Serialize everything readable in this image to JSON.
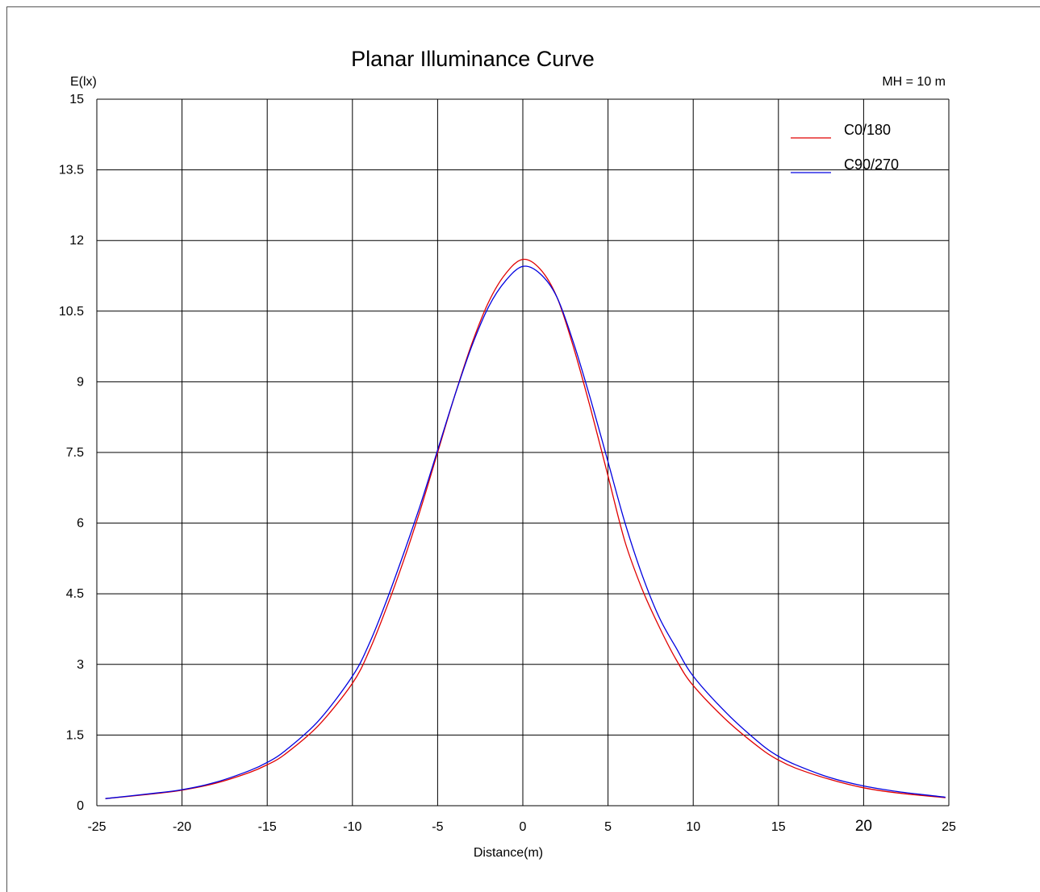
{
  "chart_data": {
    "type": "line",
    "title": "Planar Illuminance Curve",
    "subtitle": "MH = 10 m",
    "xlabel": "Distance(m)",
    "ylabel": "E(lx)",
    "xlim": [
      -25,
      25
    ],
    "ylim": [
      0,
      15
    ],
    "x_ticks": [
      "-25",
      "-20",
      "-15",
      "-10",
      "-5",
      "0",
      "5",
      "10",
      "15",
      "20",
      "25"
    ],
    "y_ticks": [
      "0",
      "1.5",
      "3",
      "4.5",
      "6",
      "7.5",
      "9",
      "10.5",
      "12",
      "13.5",
      "15"
    ],
    "grid": true,
    "legend_position": "top-right",
    "x": [
      -24.5,
      -22,
      -20,
      -18,
      -16,
      -15,
      -14,
      -12,
      -10,
      -9,
      -8,
      -7,
      -6,
      -5,
      -4,
      -3,
      -2,
      -1,
      0,
      1,
      2,
      3,
      4,
      5,
      6,
      7,
      8,
      9,
      10,
      12,
      14,
      15,
      16,
      18,
      20,
      22,
      24.8
    ],
    "series": [
      {
        "name": "C0/180",
        "color": "#e00000",
        "values": [
          0.15,
          0.24,
          0.33,
          0.48,
          0.71,
          0.87,
          1.08,
          1.7,
          2.6,
          3.3,
          4.2,
          5.2,
          6.3,
          7.5,
          8.7,
          9.8,
          10.7,
          11.3,
          11.6,
          11.4,
          10.8,
          9.7,
          8.4,
          7.0,
          5.6,
          4.6,
          3.8,
          3.1,
          2.55,
          1.8,
          1.2,
          0.97,
          0.8,
          0.56,
          0.38,
          0.27,
          0.17
        ]
      },
      {
        "name": "C90/270",
        "color": "#0000e0",
        "values": [
          0.15,
          0.25,
          0.34,
          0.5,
          0.75,
          0.92,
          1.15,
          1.8,
          2.75,
          3.45,
          4.35,
          5.35,
          6.4,
          7.55,
          8.7,
          9.75,
          10.6,
          11.15,
          11.45,
          11.3,
          10.8,
          9.8,
          8.6,
          7.3,
          6.0,
          4.9,
          4.0,
          3.35,
          2.75,
          1.95,
          1.3,
          1.05,
          0.87,
          0.6,
          0.42,
          0.3,
          0.18
        ]
      }
    ]
  }
}
